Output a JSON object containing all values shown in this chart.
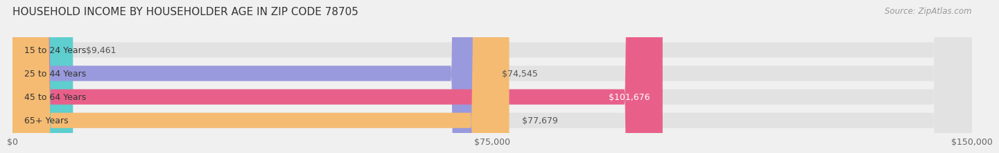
{
  "title": "HOUSEHOLD INCOME BY HOUSEHOLDER AGE IN ZIP CODE 78705",
  "source": "Source: ZipAtlas.com",
  "categories": [
    "15 to 24 Years",
    "25 to 44 Years",
    "45 to 64 Years",
    "65+ Years"
  ],
  "values": [
    9461,
    74545,
    101676,
    77679
  ],
  "bar_colors": [
    "#5ecece",
    "#9999dd",
    "#e8608a",
    "#f5bb72"
  ],
  "xlim": [
    0,
    150000
  ],
  "xticks": [
    0,
    75000,
    150000
  ],
  "xticklabels": [
    "$0",
    "$75,000",
    "$150,000"
  ],
  "background_color": "#f0f0f0",
  "bar_background_color": "#e2e2e2",
  "bar_height": 0.65,
  "title_fontsize": 11,
  "source_fontsize": 8.5,
  "label_fontsize": 9,
  "tick_fontsize": 9,
  "category_fontsize": 9
}
